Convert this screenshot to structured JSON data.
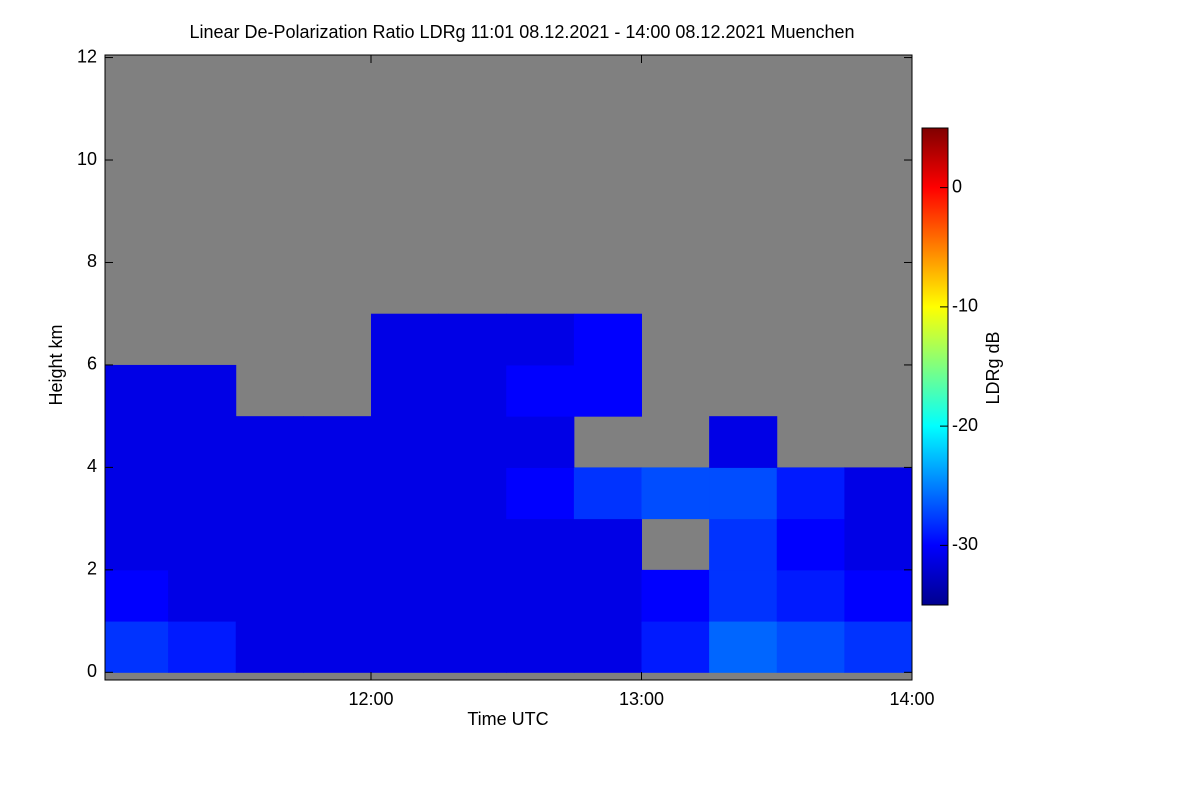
{
  "chart_data": {
    "type": "heatmap",
    "title": "Linear De-Polarization Ratio LDRg   11:01 08.12.2021 - 14:00 08.12.2021 Muenchen",
    "x_label": "Time UTC",
    "y_label": "Height km",
    "colorbar_label": "LDRg dB",
    "colormap": "jet",
    "background": "#808080",
    "x_bins": [
      11.0167,
      11.25,
      11.5,
      11.75,
      12.0,
      12.25,
      12.5,
      12.75,
      13.0,
      13.25,
      13.5,
      13.75,
      14.0
    ],
    "y_bins": [
      0,
      1,
      2,
      3,
      4,
      5,
      6,
      7,
      8,
      9,
      10,
      11,
      12
    ],
    "z": [
      [
        -28,
        -29,
        -31,
        -31,
        -31,
        -31,
        -31,
        -31,
        -29,
        -26,
        -27,
        -28
      ],
      [
        -30,
        -31,
        -31,
        -31,
        -31,
        -31,
        -31,
        -31,
        -30,
        -28,
        -29,
        -30
      ],
      [
        -31,
        -31,
        -31,
        -31,
        -31,
        -31,
        -31,
        -31,
        null,
        -28,
        -30,
        -31
      ],
      [
        -31,
        -31,
        -31,
        -31,
        -31,
        -31,
        -30,
        -28,
        -27,
        -27,
        -29,
        -31
      ],
      [
        -31,
        -31,
        -31,
        -31,
        -31,
        -31,
        -31,
        null,
        null,
        -31,
        null,
        null
      ],
      [
        -31,
        -31,
        null,
        null,
        -31,
        -31,
        -30,
        -30,
        null,
        null,
        null,
        null
      ],
      [
        null,
        null,
        null,
        null,
        -31,
        -31,
        -31,
        -30,
        null,
        null,
        null,
        null
      ],
      [
        null,
        null,
        null,
        null,
        null,
        null,
        null,
        null,
        null,
        null,
        null,
        null
      ],
      [
        null,
        null,
        null,
        null,
        null,
        null,
        null,
        null,
        null,
        null,
        null,
        null
      ],
      [
        null,
        null,
        null,
        null,
        null,
        null,
        null,
        null,
        null,
        null,
        null,
        null
      ],
      [
        null,
        null,
        null,
        null,
        null,
        null,
        null,
        null,
        null,
        null,
        null,
        null
      ],
      [
        null,
        null,
        null,
        null,
        null,
        null,
        null,
        null,
        null,
        null,
        null,
        null
      ]
    ],
    "xlim": [
      11.0167,
      14.0
    ],
    "xticks": [
      {
        "value": 12,
        "label": "12:00"
      },
      {
        "value": 13,
        "label": "13:00"
      },
      {
        "value": 14,
        "label": "14:00"
      }
    ],
    "ylim": [
      -0.15,
      12.05
    ],
    "yticks": [
      0,
      2,
      4,
      6,
      8,
      10,
      12
    ],
    "zlim": [
      -35,
      5
    ],
    "zticks": [
      0,
      -10,
      -20,
      -30
    ]
  }
}
